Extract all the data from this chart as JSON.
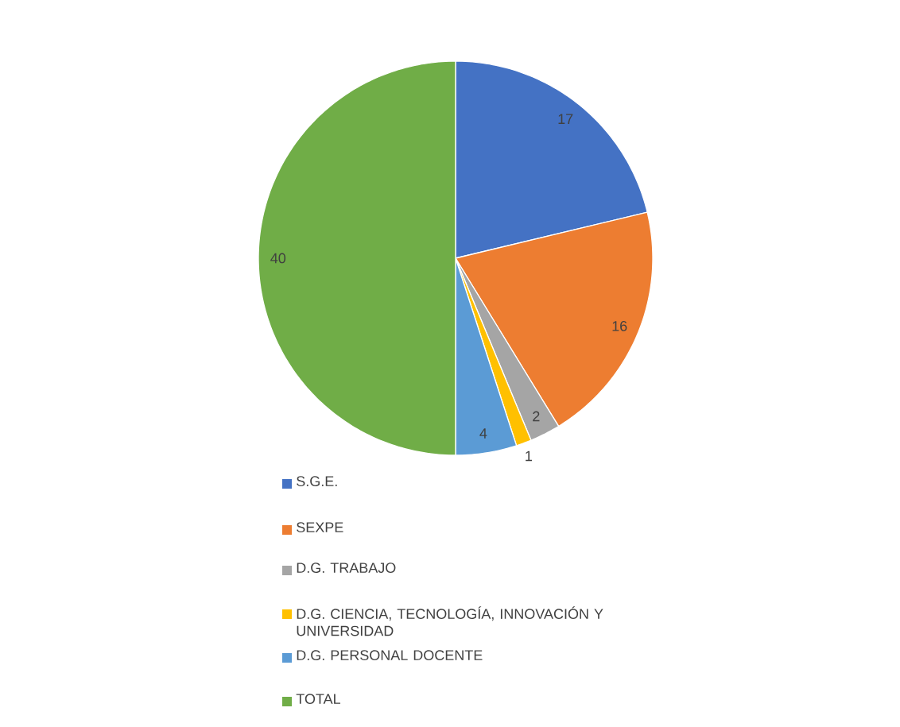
{
  "chart_data": {
    "type": "pie",
    "categories": [
      "S.G.E.",
      "SEXPE",
      "D.G. TRABAJO",
      "D.G. CIENCIA, TECNOLOGÍA, INNOVACIÓN Y UNIVERSIDAD",
      "D.G. PERSONAL DOCENTE",
      "TOTAL"
    ],
    "values": [
      17,
      16,
      2,
      1,
      4,
      40
    ],
    "colors": [
      "#4472c4",
      "#ed7d31",
      "#a5a5a5",
      "#ffc000",
      "#5b9bd5",
      "#70ad47"
    ],
    "data_labels": true,
    "legend": "bottom"
  }
}
